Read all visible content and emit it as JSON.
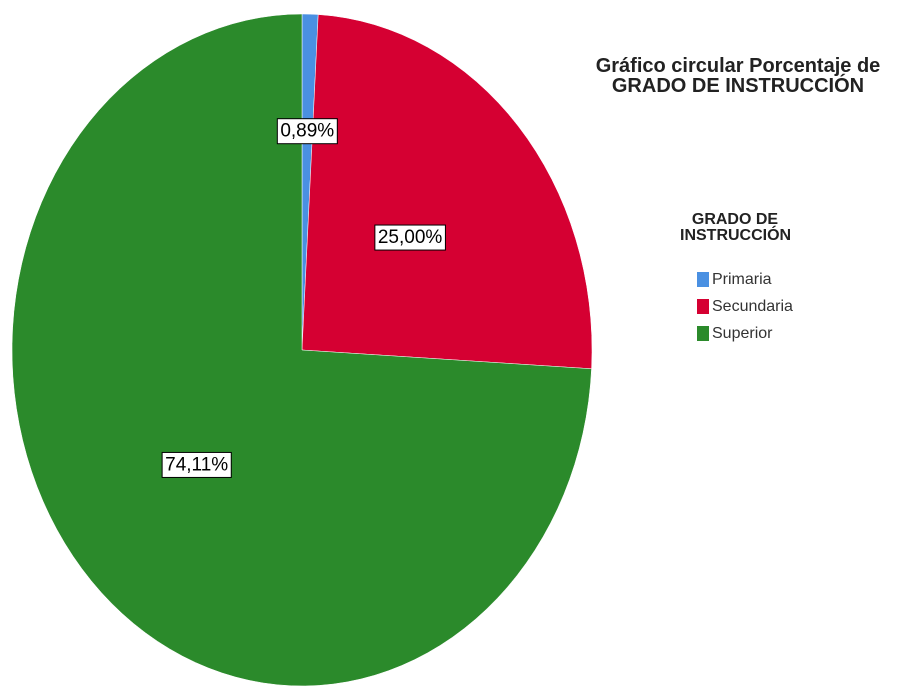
{
  "chart_data": {
    "type": "pie",
    "title": "Gráfico circular Porcentaje de GRADO DE INSTRUCCIÓN",
    "legend_title": "GRADO DE INSTRUCCIÓN",
    "categories": [
      "Primaria",
      "Secundaria",
      "Superior"
    ],
    "values": [
      0.89,
      25,
      74.11
    ],
    "value_labels": [
      "0,89%",
      "25,00%",
      "74,11%"
    ],
    "colors": [
      "#4a90e2",
      "#d50032",
      "#2b8a2b"
    ],
    "legend": "right"
  }
}
